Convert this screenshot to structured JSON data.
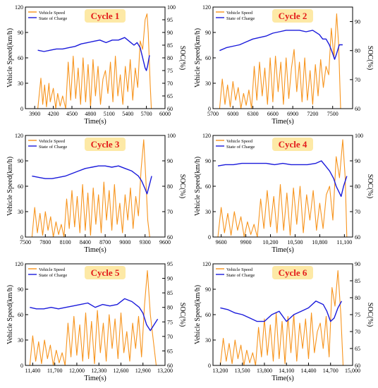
{
  "figure": {
    "legend_speed": "Vehicle Speed",
    "legend_soc": "State of Charge",
    "xlabel": "Time(s)",
    "ylabel_left": "Vehicle Speed(km/h)",
    "ylabel_right": "SOC(%)",
    "colors": {
      "speed": "#f7941d",
      "soc": "#1a1adb",
      "title_bg": "#fde9a6",
      "title_fg": "#e31b1b"
    }
  },
  "chart_data": [
    {
      "type": "line",
      "title": "Cycle 1",
      "xlim": [
        3750,
        6000
      ],
      "xticks": [
        3900,
        4200,
        4500,
        4800,
        5100,
        5400,
        5700,
        6000
      ],
      "ylim": [
        0,
        120
      ],
      "yticks": [
        0,
        30,
        60,
        90,
        120
      ],
      "y2lim": [
        60,
        100
      ],
      "y2ticks": [
        60,
        65,
        70,
        75,
        80,
        85,
        90,
        95,
        100
      ],
      "speed": {
        "x": [
          3950,
          4000,
          4030,
          4060,
          4090,
          4130,
          4150,
          4200,
          4240,
          4270,
          4310,
          4350,
          4400,
          4440,
          4480,
          4520,
          4560,
          4600,
          4640,
          4680,
          4720,
          4760,
          4800,
          4840,
          4880,
          4920,
          4960,
          5000,
          5040,
          5080,
          5120,
          5160,
          5200,
          5240,
          5280,
          5320,
          5360,
          5400,
          5440,
          5480,
          5520,
          5560,
          5600,
          5640,
          5680,
          5710,
          5730,
          5760,
          5780
        ],
        "y": [
          0,
          36,
          5,
          28,
          2,
          30,
          8,
          24,
          0,
          18,
          3,
          15,
          0,
          55,
          10,
          62,
          12,
          48,
          5,
          60,
          8,
          52,
          2,
          58,
          15,
          50,
          5,
          35,
          45,
          18,
          55,
          8,
          62,
          15,
          40,
          5,
          50,
          20,
          58,
          10,
          48,
          25,
          80,
          70,
          105,
          112,
          90,
          30,
          0
        ]
      },
      "soc": {
        "x": [
          3950,
          4050,
          4150,
          4250,
          4350,
          4450,
          4550,
          4650,
          4750,
          4850,
          4950,
          5050,
          5150,
          5250,
          5350,
          5450,
          5500,
          5550,
          5600,
          5640,
          5680,
          5700,
          5720,
          5750
        ],
        "y": [
          83,
          82.5,
          83,
          83.5,
          83.5,
          84,
          84.5,
          85.5,
          86,
          86.5,
          87,
          86,
          87,
          87,
          88,
          86,
          85,
          86,
          84,
          80,
          76,
          75,
          77,
          81
        ]
      }
    },
    {
      "type": "line",
      "title": "Cycle 2",
      "xlim": [
        5700,
        7800
      ],
      "xticks": [
        5700,
        6000,
        6300,
        6600,
        6900,
        7200,
        7500
      ],
      "ylim": [
        0,
        120
      ],
      "yticks": [
        0,
        30,
        60,
        90,
        120
      ],
      "y2lim": [
        60,
        95
      ],
      "y2ticks": [
        60,
        70,
        80,
        90
      ],
      "speed": {
        "x": [
          5800,
          5840,
          5880,
          5920,
          5960,
          6000,
          6040,
          6080,
          6120,
          6160,
          6200,
          6240,
          6280,
          6320,
          6360,
          6400,
          6440,
          6480,
          6520,
          6560,
          6600,
          6640,
          6680,
          6720,
          6760,
          6800,
          6840,
          6880,
          6920,
          6960,
          7000,
          7040,
          7080,
          7120,
          7160,
          7200,
          7240,
          7280,
          7320,
          7360,
          7400,
          7440,
          7480,
          7520,
          7560,
          7590,
          7620
        ],
        "y": [
          0,
          35,
          5,
          28,
          2,
          32,
          10,
          25,
          0,
          18,
          4,
          22,
          0,
          50,
          10,
          55,
          15,
          48,
          5,
          60,
          8,
          62,
          20,
          55,
          5,
          60,
          12,
          48,
          70,
          20,
          55,
          8,
          60,
          10,
          45,
          5,
          52,
          15,
          58,
          25,
          50,
          40,
          95,
          60,
          112,
          75,
          0
        ]
      },
      "soc": {
        "x": [
          5800,
          5900,
          6000,
          6100,
          6200,
          6300,
          6400,
          6500,
          6600,
          6700,
          6800,
          6900,
          7000,
          7100,
          7200,
          7300,
          7350,
          7400,
          7450,
          7500,
          7530,
          7560,
          7600,
          7650
        ],
        "y": [
          80,
          81,
          81.5,
          82,
          83,
          84,
          84.5,
          85,
          86,
          86.5,
          87,
          87,
          87,
          86.5,
          87,
          85.5,
          84,
          84,
          82,
          79,
          77,
          79,
          82,
          82
        ]
      }
    },
    {
      "type": "line",
      "title": "Cycle 3",
      "xlim": [
        7500,
        9600
      ],
      "xticks": [
        7500,
        7800,
        8100,
        8400,
        8700,
        9000,
        9300,
        9600
      ],
      "ylim": [
        0,
        120
      ],
      "yticks": [
        0,
        30,
        60,
        90,
        120
      ],
      "y2lim": [
        60,
        100
      ],
      "y2ticks": [
        60,
        70,
        80,
        90,
        100
      ],
      "speed": {
        "x": [
          7600,
          7640,
          7680,
          7720,
          7760,
          7800,
          7840,
          7880,
          7920,
          7960,
          8000,
          8040,
          8080,
          8120,
          8160,
          8200,
          8240,
          8280,
          8320,
          8360,
          8400,
          8440,
          8480,
          8520,
          8560,
          8600,
          8640,
          8680,
          8720,
          8760,
          8800,
          8840,
          8880,
          8920,
          8960,
          9000,
          9040,
          9080,
          9120,
          9160,
          9200,
          9240,
          9280,
          9310,
          9340,
          9370
        ],
        "y": [
          0,
          35,
          5,
          28,
          2,
          30,
          8,
          24,
          0,
          18,
          3,
          15,
          0,
          45,
          10,
          55,
          12,
          48,
          5,
          62,
          8,
          52,
          2,
          58,
          15,
          50,
          5,
          65,
          20,
          55,
          8,
          62,
          15,
          40,
          5,
          50,
          20,
          58,
          10,
          48,
          25,
          80,
          115,
          70,
          20,
          0
        ]
      },
      "soc": {
        "x": [
          7600,
          7700,
          7800,
          7900,
          8000,
          8100,
          8200,
          8300,
          8400,
          8500,
          8600,
          8700,
          8800,
          8900,
          9000,
          9100,
          9150,
          9200,
          9250,
          9300,
          9330,
          9360,
          9400
        ],
        "y": [
          84,
          83.5,
          83,
          83,
          83.5,
          84,
          85,
          86,
          87,
          87.5,
          88,
          88,
          87.5,
          88,
          87,
          86,
          85,
          84,
          82,
          79,
          77,
          80,
          84
        ]
      }
    },
    {
      "type": "line",
      "title": "Cycle 4",
      "xlim": [
        9500,
        11200
      ],
      "xticks": [
        9600,
        9900,
        10200,
        10500,
        10800,
        11100
      ],
      "ylim": [
        0,
        120
      ],
      "yticks": [
        0,
        30,
        60,
        90,
        120
      ],
      "y2lim": [
        60,
        100
      ],
      "y2ticks": [
        60,
        70,
        80,
        90,
        100
      ],
      "speed": {
        "x": [
          9560,
          9600,
          9640,
          9680,
          9720,
          9760,
          9800,
          9840,
          9880,
          9920,
          9960,
          10000,
          10040,
          10080,
          10120,
          10160,
          10200,
          10240,
          10280,
          10320,
          10360,
          10400,
          10440,
          10480,
          10520,
          10560,
          10600,
          10640,
          10680,
          10720,
          10760,
          10800,
          10840,
          10880,
          10920,
          10960,
          11000,
          11040,
          11080,
          11110,
          11130
        ],
        "y": [
          0,
          35,
          5,
          28,
          2,
          30,
          8,
          24,
          0,
          18,
          3,
          15,
          0,
          45,
          10,
          55,
          12,
          48,
          5,
          62,
          8,
          52,
          2,
          58,
          15,
          60,
          5,
          50,
          20,
          55,
          8,
          40,
          10,
          50,
          60,
          20,
          95,
          70,
          115,
          70,
          0
        ]
      },
      "soc": {
        "x": [
          9560,
          9650,
          9750,
          9850,
          9950,
          10050,
          10150,
          10250,
          10350,
          10450,
          10550,
          10650,
          10750,
          10820,
          10870,
          10920,
          10970,
          11000,
          11030,
          11060,
          11090,
          11130
        ],
        "y": [
          88,
          88.5,
          88.5,
          89,
          89,
          89,
          89,
          88.5,
          89,
          88.5,
          88.5,
          88.5,
          89,
          90,
          88,
          86,
          83,
          80,
          78,
          76,
          80,
          84
        ]
      }
    },
    {
      "type": "line",
      "title": "Cycle 5",
      "xlim": [
        11300,
        13200
      ],
      "xticks": [
        11400,
        11700,
        12000,
        12300,
        12600,
        12900,
        13200
      ],
      "ylim": [
        0,
        120
      ],
      "yticks": [
        0,
        30,
        60,
        90,
        120
      ],
      "y2lim": [
        60,
        95
      ],
      "y2ticks": [
        60,
        65,
        70,
        75,
        80,
        85,
        90,
        95
      ],
      "speed": {
        "x": [
          11360,
          11400,
          11440,
          11480,
          11520,
          11560,
          11600,
          11640,
          11680,
          11720,
          11760,
          11800,
          11840,
          11880,
          11920,
          11960,
          12000,
          12040,
          12080,
          12120,
          12160,
          12200,
          12240,
          12280,
          12320,
          12360,
          12400,
          12440,
          12480,
          12520,
          12560,
          12600,
          12640,
          12680,
          12720,
          12760,
          12800,
          12840,
          12880,
          12920,
          12960,
          13000,
          13040,
          13080
        ],
        "y": [
          0,
          35,
          5,
          28,
          2,
          30,
          8,
          24,
          0,
          18,
          3,
          15,
          0,
          50,
          10,
          58,
          12,
          48,
          5,
          62,
          8,
          52,
          2,
          65,
          15,
          50,
          5,
          60,
          20,
          55,
          8,
          62,
          15,
          40,
          5,
          50,
          20,
          58,
          10,
          70,
          112,
          60,
          30,
          0
        ]
      },
      "soc": {
        "x": [
          11360,
          11450,
          11550,
          11650,
          11750,
          11850,
          11950,
          12050,
          12150,
          12250,
          12350,
          12450,
          12550,
          12650,
          12750,
          12850,
          12900,
          12950,
          13000,
          13050,
          13100
        ],
        "y": [
          80,
          79.5,
          79.5,
          80,
          79.5,
          80,
          80.5,
          81,
          81.5,
          80,
          81,
          80.5,
          81,
          83,
          82,
          80,
          78,
          74,
          72,
          74,
          76
        ]
      }
    },
    {
      "type": "line",
      "title": "Cycle 6",
      "xlim": [
        13100,
        15000
      ],
      "xticks": [
        13200,
        13500,
        13800,
        14100,
        14400,
        14700,
        15000
      ],
      "ylim": [
        0,
        120
      ],
      "yticks": [
        0,
        30,
        60,
        90,
        120
      ],
      "y2lim": [
        60,
        90
      ],
      "y2ticks": [
        60,
        65,
        70,
        75,
        80,
        85,
        90
      ],
      "speed": {
        "x": [
          13200,
          13240,
          13280,
          13320,
          13360,
          13400,
          13440,
          13480,
          13520,
          13560,
          13600,
          13640,
          13680,
          13720,
          13760,
          13800,
          13840,
          13880,
          13920,
          13960,
          14000,
          14040,
          14080,
          14120,
          14160,
          14200,
          14240,
          14280,
          14320,
          14360,
          14400,
          14440,
          14480,
          14520,
          14560,
          14600,
          14640,
          14680,
          14720,
          14760,
          14800,
          14840,
          14870
        ],
        "y": [
          0,
          32,
          5,
          26,
          2,
          30,
          8,
          24,
          0,
          18,
          3,
          15,
          0,
          45,
          10,
          55,
          12,
          48,
          5,
          62,
          8,
          52,
          2,
          58,
          15,
          60,
          5,
          50,
          20,
          55,
          8,
          62,
          15,
          40,
          50,
          20,
          58,
          10,
          92,
          70,
          112,
          60,
          0
        ]
      },
      "soc": {
        "x": [
          13200,
          13300,
          13400,
          13500,
          13600,
          13700,
          13800,
          13900,
          14000,
          14100,
          14200,
          14300,
          14400,
          14500,
          14600,
          14650,
          14700,
          14750,
          14800,
          14850
        ],
        "y": [
          77,
          76.5,
          75.5,
          75,
          74,
          73,
          73,
          75,
          76,
          73,
          75,
          76,
          77,
          79,
          78,
          76,
          73,
          74,
          77,
          79
        ]
      }
    }
  ]
}
